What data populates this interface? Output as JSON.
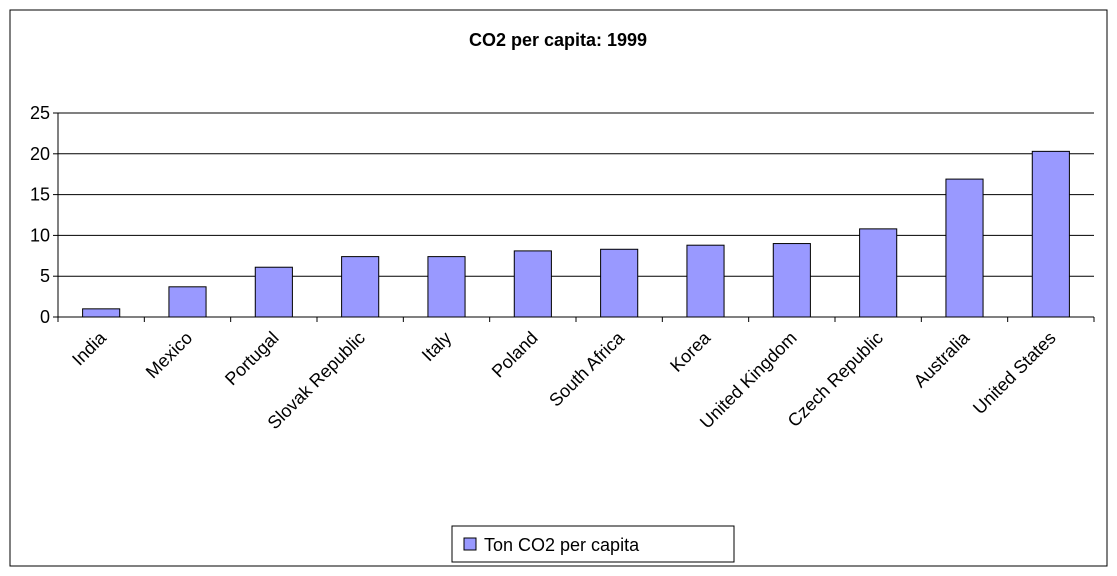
{
  "chart_data": {
    "type": "bar",
    "title": "CO2 per capita: 1999",
    "xlabel": "",
    "ylabel": "",
    "ylim": [
      0,
      25
    ],
    "yticks": [
      0,
      5,
      10,
      15,
      20,
      25
    ],
    "grid": true,
    "legend_position": "bottom",
    "categories": [
      "India",
      "Mexico",
      "Portugal",
      "Slovak Republic",
      "Italy",
      "Poland",
      "South Africa",
      "Korea",
      "United Kingdom",
      "Czech Republic",
      "Australia",
      "United States"
    ],
    "series": [
      {
        "name": "Ton CO2 per capita",
        "color": "#9999ff",
        "values": [
          1.0,
          3.7,
          6.1,
          7.4,
          7.4,
          8.1,
          8.3,
          8.8,
          9.0,
          10.8,
          16.9,
          20.3
        ]
      }
    ]
  }
}
